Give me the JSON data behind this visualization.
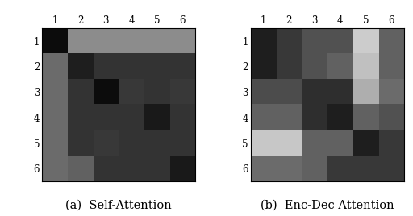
{
  "self_attention": [
    [
      0.05,
      0.55,
      0.55,
      0.55,
      0.55,
      0.55
    ],
    [
      0.42,
      0.12,
      0.2,
      0.2,
      0.2,
      0.2
    ],
    [
      0.42,
      0.2,
      0.05,
      0.22,
      0.2,
      0.22
    ],
    [
      0.42,
      0.2,
      0.2,
      0.2,
      0.1,
      0.2
    ],
    [
      0.42,
      0.2,
      0.22,
      0.2,
      0.2,
      0.2
    ],
    [
      0.42,
      0.38,
      0.2,
      0.2,
      0.2,
      0.1
    ]
  ],
  "enc_dec_attention": [
    [
      0.12,
      0.22,
      0.32,
      0.32,
      0.8,
      0.38
    ],
    [
      0.12,
      0.22,
      0.32,
      0.38,
      0.75,
      0.38
    ],
    [
      0.3,
      0.3,
      0.18,
      0.18,
      0.68,
      0.42
    ],
    [
      0.38,
      0.38,
      0.18,
      0.12,
      0.38,
      0.32
    ],
    [
      0.78,
      0.78,
      0.38,
      0.38,
      0.12,
      0.22
    ],
    [
      0.42,
      0.42,
      0.38,
      0.22,
      0.22,
      0.22
    ]
  ],
  "tick_labels": [
    "1",
    "2",
    "3",
    "4",
    "5",
    "6"
  ],
  "caption_a": "(a)  Self-Attention",
  "caption_b": "(b)  Enc-Dec Attention",
  "caption_fontsize": 10.5
}
